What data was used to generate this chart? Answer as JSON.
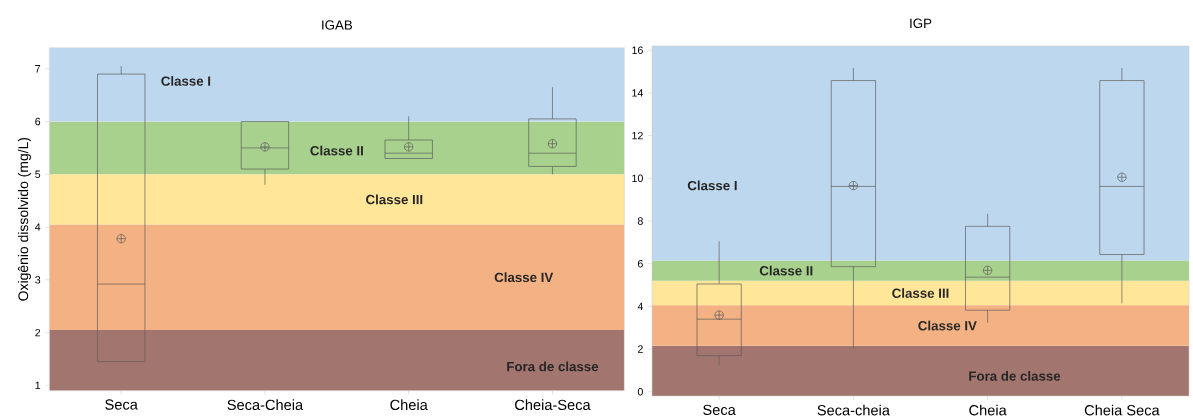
{
  "chart_data": [
    {
      "type": "box",
      "title": "IGAB",
      "ylabel": "Oxigênio dissolvido (mg/L)",
      "categories": [
        "Seca",
        "Seca-Cheia",
        "Cheia",
        "Cheia-Seca"
      ],
      "boxes": [
        {
          "low": 1.45,
          "q1": 1.45,
          "median": 2.92,
          "q3": 6.9,
          "high": 7.05,
          "mean": 3.78
        },
        {
          "low": 4.8,
          "q1": 5.1,
          "median": 5.5,
          "q3": 6.0,
          "high": 6.0,
          "mean": 5.52
        },
        {
          "low": 5.3,
          "q1": 5.3,
          "median": 5.4,
          "q3": 5.65,
          "high": 6.1,
          "mean": 5.52
        },
        {
          "low": 5.0,
          "q1": 5.15,
          "median": 5.4,
          "q3": 6.05,
          "high": 6.65,
          "mean": 5.58
        }
      ],
      "ylim": [
        0.9,
        7.4
      ],
      "yticks": [
        1,
        2,
        3,
        4,
        5,
        6,
        7
      ],
      "marker": "circle",
      "bands": [
        {
          "axis": "y",
          "from": 0.9,
          "to": 2.05,
          "label": "Fora de classe",
          "color": "#a3756f"
        },
        {
          "axis": "y",
          "from": 2.05,
          "to": 4.05,
          "label": "Classe IV",
          "color": "#f4b183"
        },
        {
          "axis": "y",
          "from": 4.05,
          "to": 5.0,
          "label": "Classe III",
          "color": "#ffe699"
        },
        {
          "axis": "y",
          "from": 5.0,
          "to": 6.0,
          "label": "Classe II",
          "color": "#a9d18e"
        },
        {
          "axis": "y",
          "from": 6.0,
          "to": 7.4,
          "label": "Classe I",
          "color": "#bdd7ee"
        }
      ]
    },
    {
      "type": "box",
      "title": "IGP",
      "categories": [
        "Seca",
        "Seca-cheia",
        "Cheia",
        "Cheia Seca"
      ],
      "boxes": [
        {
          "low": 1.26,
          "q1": 1.69,
          "median": 3.4,
          "q3": 5.05,
          "high": 7.05,
          "mean": 3.59
        },
        {
          "low": 2.02,
          "q1": 5.86,
          "median": 9.62,
          "q3": 14.58,
          "high": 15.17,
          "mean": 9.66
        },
        {
          "low": 3.23,
          "q1": 3.82,
          "median": 5.37,
          "q3": 7.75,
          "high": 8.34,
          "mean": 5.69
        },
        {
          "low": 4.14,
          "q1": 6.43,
          "median": 9.62,
          "q3": 14.58,
          "high": 15.17,
          "mean": 10.05
        }
      ],
      "ylim": [
        -0.2,
        16.2
      ],
      "yticks": [
        0,
        2,
        4,
        6,
        8,
        10,
        12,
        14,
        16
      ],
      "marker": "circle",
      "bands": [
        {
          "axis": "y",
          "from": -0.2,
          "to": 2.15,
          "label": "Fora de classe",
          "color": "#a3756f"
        },
        {
          "axis": "y",
          "from": 2.15,
          "to": 4.05,
          "label": "Classe IV",
          "color": "#f4b183"
        },
        {
          "axis": "y",
          "from": 4.05,
          "to": 5.2,
          "label": "Classe III",
          "color": "#ffe699"
        },
        {
          "axis": "y",
          "from": 5.2,
          "to": 6.15,
          "label": "Classe II",
          "color": "#a9d18e"
        },
        {
          "axis": "y",
          "from": 6.15,
          "to": 16.2,
          "label": "Classe I",
          "color": "#bdd7ee"
        }
      ]
    }
  ]
}
